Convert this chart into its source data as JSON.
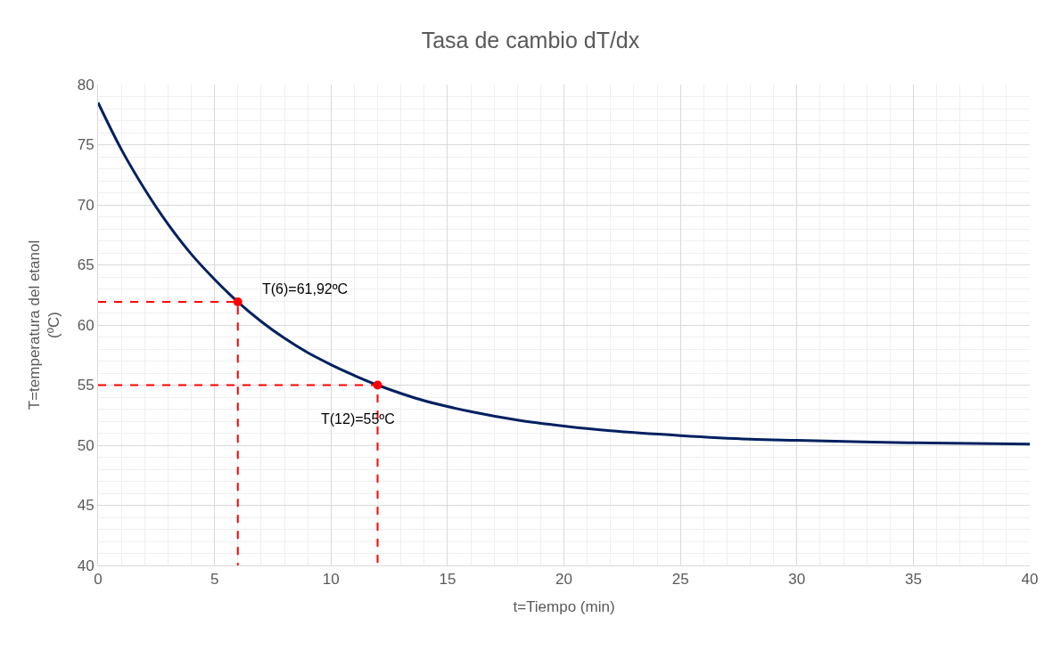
{
  "chart_data": {
    "type": "line",
    "title": "Tasa de cambio dT/dx",
    "xlabel": "t=Tiempo (min)",
    "ylabel": "T=temperatura del etanol (ºC)",
    "xlim": [
      0,
      40
    ],
    "xticks": [
      0,
      5,
      10,
      15,
      20,
      25,
      30,
      35,
      40
    ],
    "ylim": [
      40,
      80
    ],
    "yticks": [
      40,
      45,
      50,
      55,
      60,
      65,
      70,
      75,
      80
    ],
    "grid": true,
    "series": [
      {
        "color": "#002060",
        "marker": "none",
        "line_style": "solid",
        "x": [
          0,
          1,
          2,
          3,
          4,
          5,
          6,
          7,
          8,
          9,
          10,
          11,
          12,
          14,
          16,
          18,
          20,
          22,
          25,
          28,
          30,
          35,
          40
        ],
        "values": [
          78.5,
          74.6,
          71.3,
          68.4,
          65.9,
          63.8,
          61.92,
          60.3,
          58.9,
          57.7,
          56.7,
          55.8,
          55.0,
          53.7,
          52.8,
          52.1,
          51.6,
          51.2,
          50.8,
          50.5,
          50.4,
          50.2,
          50.1
        ]
      },
      {
        "type": "line",
        "color": "#ff0000",
        "marker": "none",
        "line_style": "dashed",
        "x": [
          0,
          6,
          6
        ],
        "values": [
          61.92,
          61.92,
          40
        ]
      },
      {
        "type": "line",
        "color": "#ff0000",
        "marker": "none",
        "line_style": "dashed",
        "x": [
          0,
          12,
          12
        ],
        "values": [
          55,
          55,
          40
        ]
      },
      {
        "type": "scatter",
        "color": "#ff0000",
        "marker": "circle",
        "x": [
          6,
          12
        ],
        "values": [
          61.92,
          55
        ]
      }
    ],
    "annotations": [
      {
        "text": "T(6)=61,92ºC",
        "x": 6,
        "y": 61.92
      },
      {
        "text": "T(12)=55ºC",
        "x": 12,
        "y": 55
      }
    ]
  }
}
